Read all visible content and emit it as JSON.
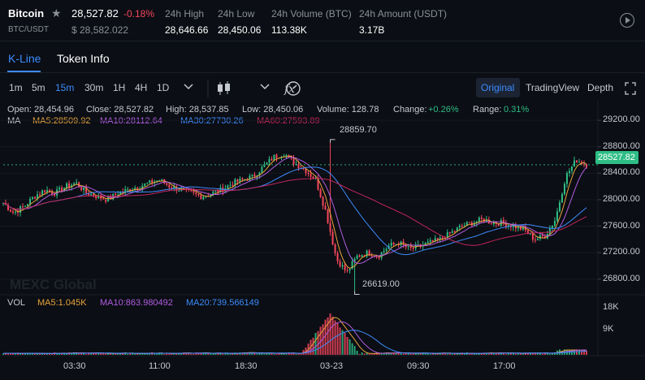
{
  "header": {
    "symbol": "Bitcoin",
    "pair": "BTC/USDT",
    "last_price": "28,527.82",
    "change": "-0.18%",
    "fiat_price": "$ 28,582.022",
    "stats": [
      {
        "label": "24h High",
        "value": "28,646.66"
      },
      {
        "label": "24h Low",
        "value": "28,450.06"
      },
      {
        "label": "24h Volume (BTC)",
        "value": "113.38K"
      },
      {
        "label": "24h Amount (USDT)",
        "value": "3.17B"
      }
    ],
    "colors": {
      "up": "#2ebd85",
      "down": "#f6465d",
      "accent": "#3d8bfd"
    }
  },
  "tabs": [
    {
      "label": "K-Line",
      "active": true
    },
    {
      "label": "Token Info",
      "active": false
    }
  ],
  "toolbar": {
    "intervals": [
      {
        "label": "1m",
        "selected": false
      },
      {
        "label": "5m",
        "selected": false
      },
      {
        "label": "15m",
        "selected": true
      },
      {
        "label": "30m",
        "selected": false
      },
      {
        "label": "1H",
        "selected": false
      },
      {
        "label": "4H",
        "selected": false
      },
      {
        "label": "1D",
        "selected": false
      }
    ],
    "views": [
      {
        "label": "Original",
        "selected": true
      },
      {
        "label": "TradingView",
        "selected": false
      },
      {
        "label": "Depth",
        "selected": false
      }
    ]
  },
  "ohlc": {
    "open": "Open: 28,454.96",
    "close": "Close: 28,527.82",
    "high": "High: 28,537.85",
    "low": "Low: 28,450.06",
    "volume": "Volume: 128.78",
    "change_label": "Change:",
    "change_value": "+0.26%",
    "range_label": "Range:",
    "range_value": "0.31%"
  },
  "ma": {
    "title": "MA",
    "items": [
      {
        "text": "MA5:28509.92",
        "color": "#e8a33d"
      },
      {
        "text": "MA10:28112.64",
        "color": "#b15ce3"
      },
      {
        "text": "MA30:27730.26",
        "color": "#3d8bfd"
      },
      {
        "text": "MA60:27593.89",
        "color": "#c2255c"
      }
    ]
  },
  "vol": {
    "title": "VOL",
    "items": [
      {
        "text": "MA5:1.045K",
        "color": "#e8a33d"
      },
      {
        "text": "MA10:863.980492",
        "color": "#b15ce3"
      },
      {
        "text": "MA20:739.566149",
        "color": "#3d8bfd"
      }
    ]
  },
  "chart_data": {
    "type": "candlestick",
    "price_axis": [
      "29200.00",
      "28800.00",
      "28400.00",
      "28000.00",
      "27600.00",
      "27200.00",
      "26800.00"
    ],
    "ylim": [
      26600,
      29300
    ],
    "volume_axis": [
      "18K",
      "9K"
    ],
    "volume_ylim": [
      0,
      20000
    ],
    "time_labels": [
      "03:30",
      "11:00",
      "18:30",
      "03-23",
      "09:30",
      "17:00"
    ],
    "high_marker": "28859.70",
    "low_marker": "26619.00",
    "last_price_tag": "28527.82",
    "watermark": "MEXC Global",
    "price_path": [
      27950,
      27800,
      27900,
      28050,
      28150,
      28100,
      28200,
      28250,
      28100,
      28050,
      28000,
      28100,
      28150,
      28200,
      28250,
      28300,
      28200,
      28150,
      28100,
      28050,
      28100,
      28150,
      28250,
      28300,
      28350,
      28500,
      28650,
      28700,
      28550,
      28450,
      28300,
      27800,
      27100,
      26900,
      27150,
      27200,
      27150,
      27300,
      27350,
      27250,
      27300,
      27350,
      27400,
      27500,
      27600,
      27650,
      27700,
      27650,
      27650,
      27600,
      27550,
      27400,
      27450,
      27700,
      28350,
      28600,
      28528
    ]
  }
}
